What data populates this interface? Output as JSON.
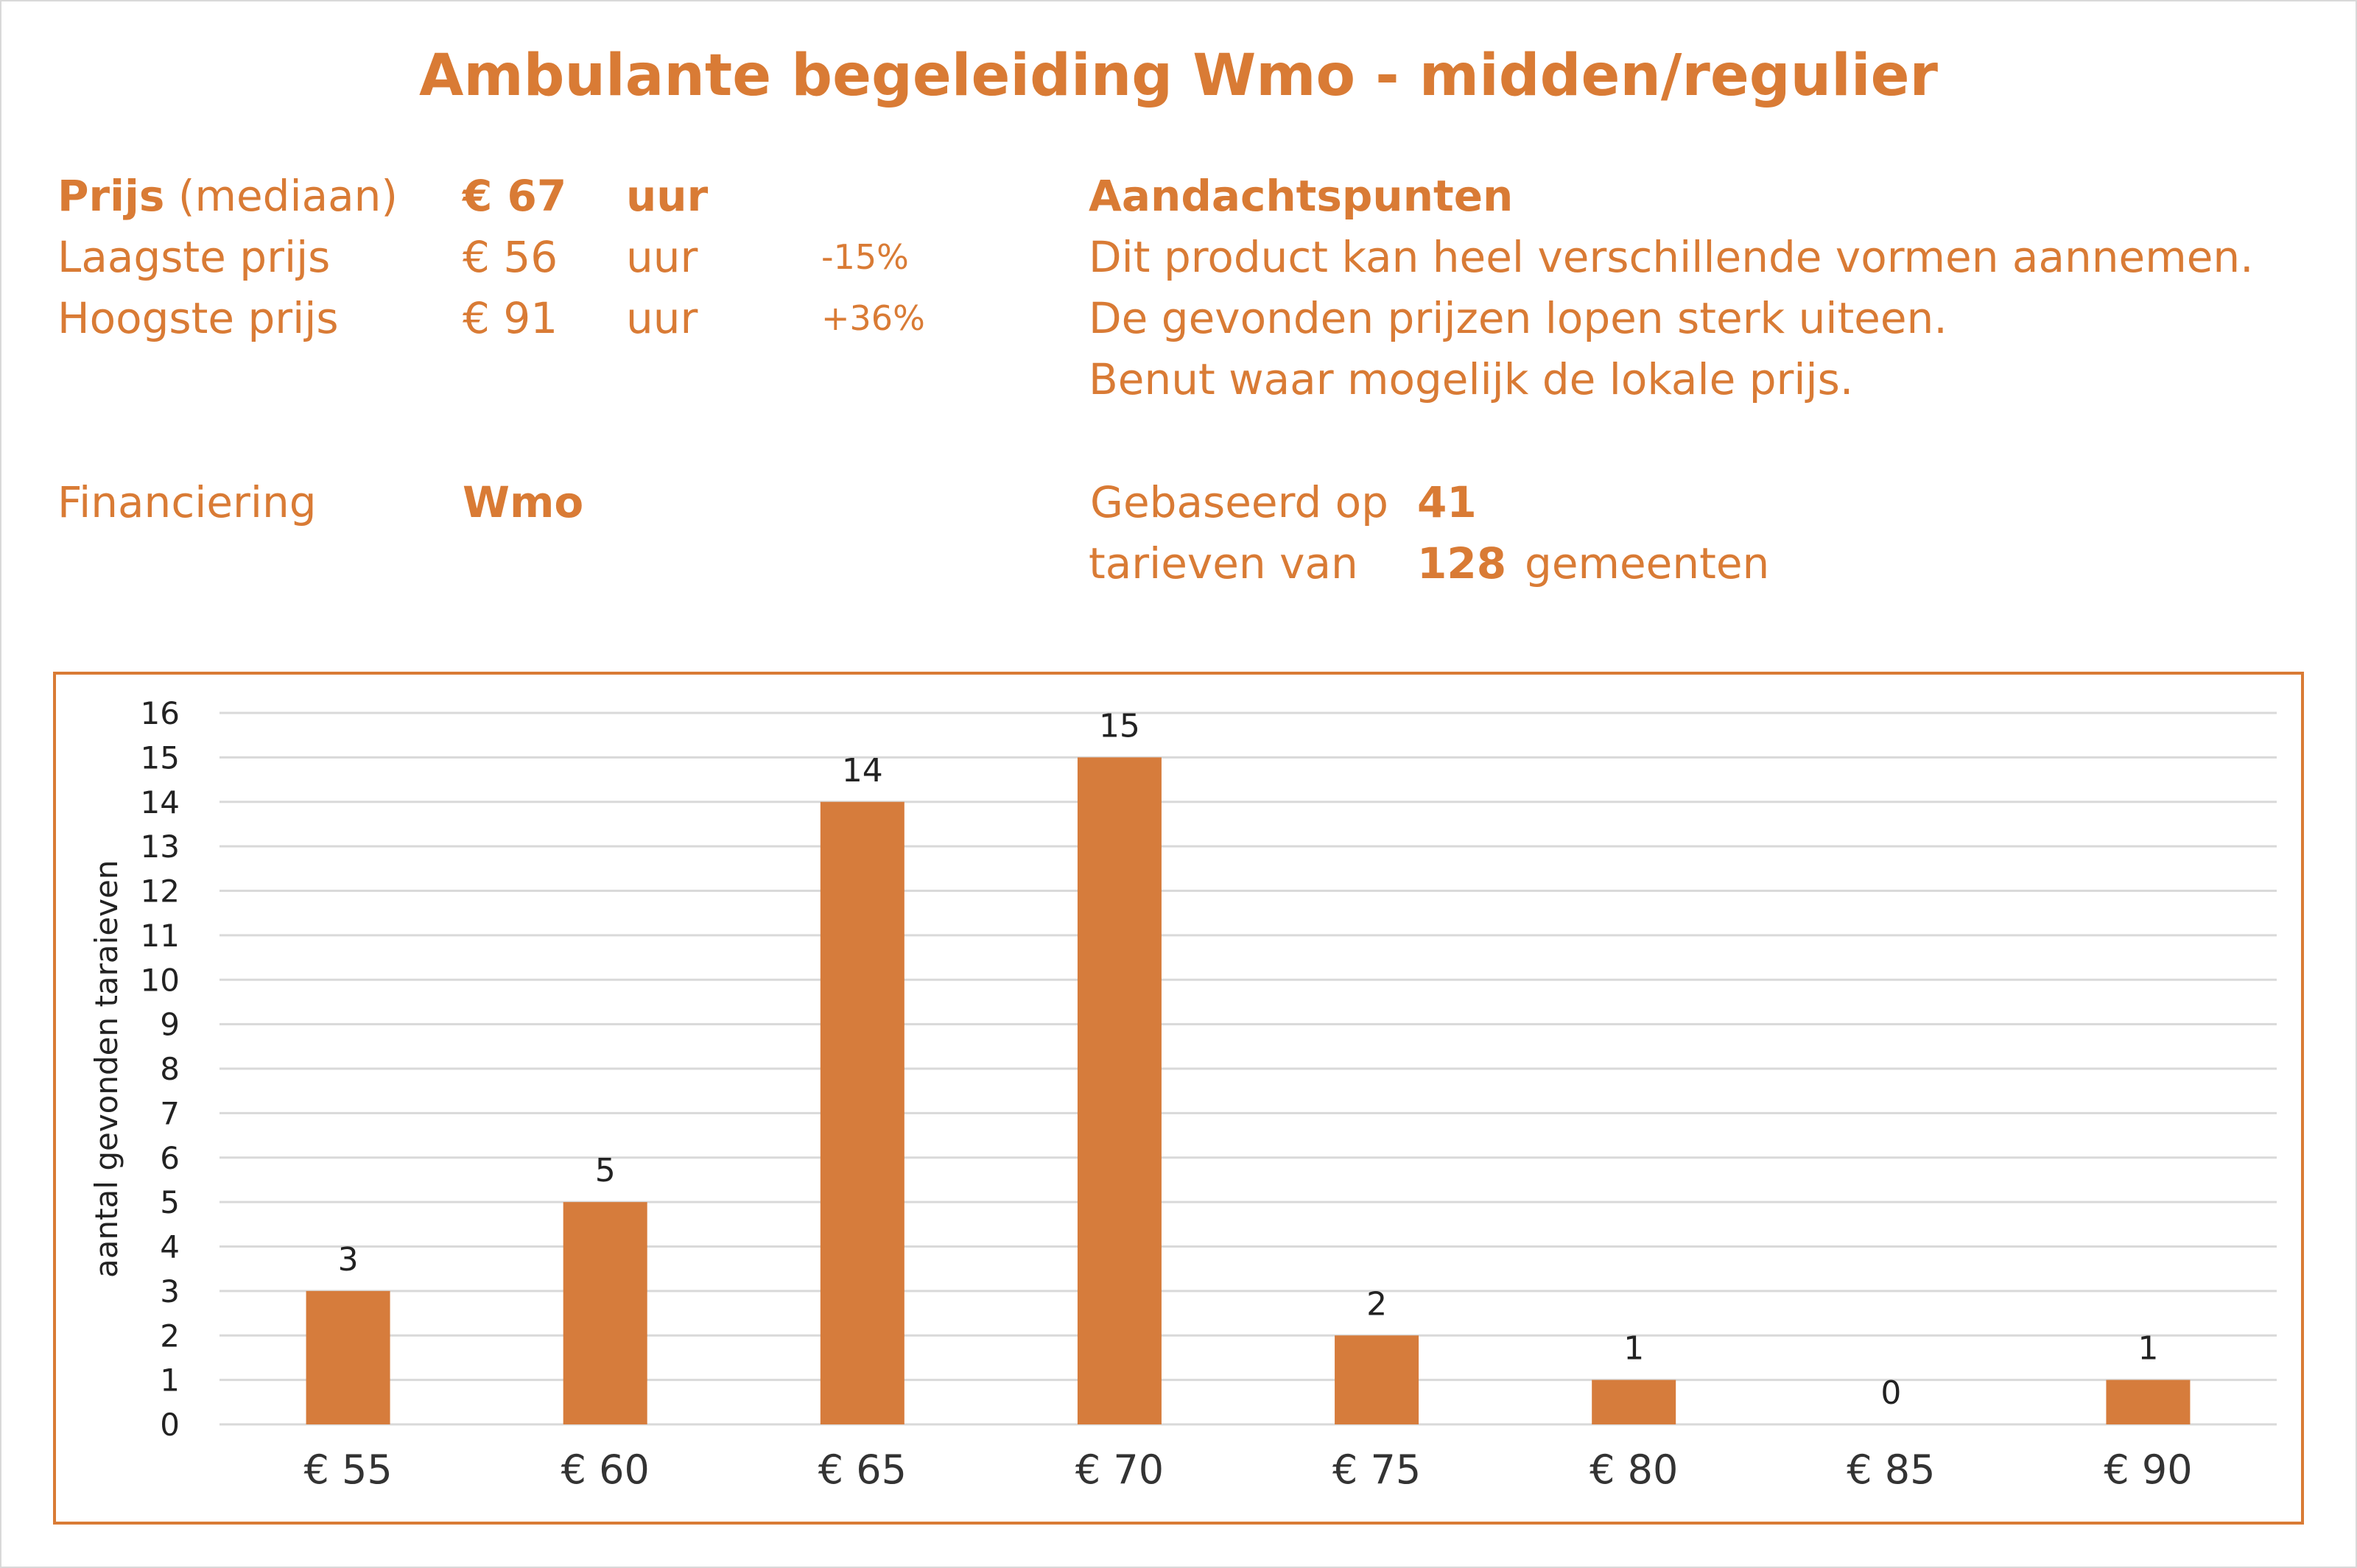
{
  "title": "Ambulante begeleiding Wmo - midden/regulier",
  "prijs": {
    "mediaan": {
      "label_bold": "Prijs",
      "label_rest": "(mediaan)",
      "price": "€ 67",
      "unit": "uur"
    },
    "laagste": {
      "label": "Laagste prijs",
      "price": "€ 56",
      "unit": "uur",
      "pct": "-15%"
    },
    "hoogste": {
      "label": "Hoogste prijs",
      "price": "€ 91",
      "unit": "uur",
      "pct": "+36%"
    }
  },
  "aandachtspunten": {
    "heading": "Aandachtspunten",
    "lines": [
      "Dit product kan heel verschillende vormen aannemen.",
      "De gevonden prijzen lopen sterk uiteen.",
      "Benut waar mogelijk de lokale prijs."
    ]
  },
  "financiering": {
    "label": "Financiering",
    "value": "Wmo"
  },
  "gebaseerd": {
    "line1_label": "Gebaseerd op",
    "line1_value": "41",
    "line2_label": "tarieven van",
    "line2_value": "128",
    "line2_suffix": "gemeenten"
  },
  "colors": {
    "accent": "#d97b35",
    "bar": "#d67c3c",
    "grid": "#d9d9d9",
    "text": "#222222"
  },
  "chart_data": {
    "type": "bar",
    "categories": [
      "€ 55",
      "€ 60",
      "€ 65",
      "€ 70",
      "€ 75",
      "€ 80",
      "€ 85",
      "€ 90"
    ],
    "values": [
      3,
      5,
      14,
      15,
      2,
      1,
      0,
      1
    ],
    "ylabel": "aantal gevonden taraieven",
    "ylim": [
      0,
      16
    ],
    "yticks": [
      0,
      1,
      2,
      3,
      4,
      5,
      6,
      7,
      8,
      9,
      10,
      11,
      12,
      13,
      14,
      15,
      16
    ],
    "grid": true,
    "data_labels": true
  }
}
